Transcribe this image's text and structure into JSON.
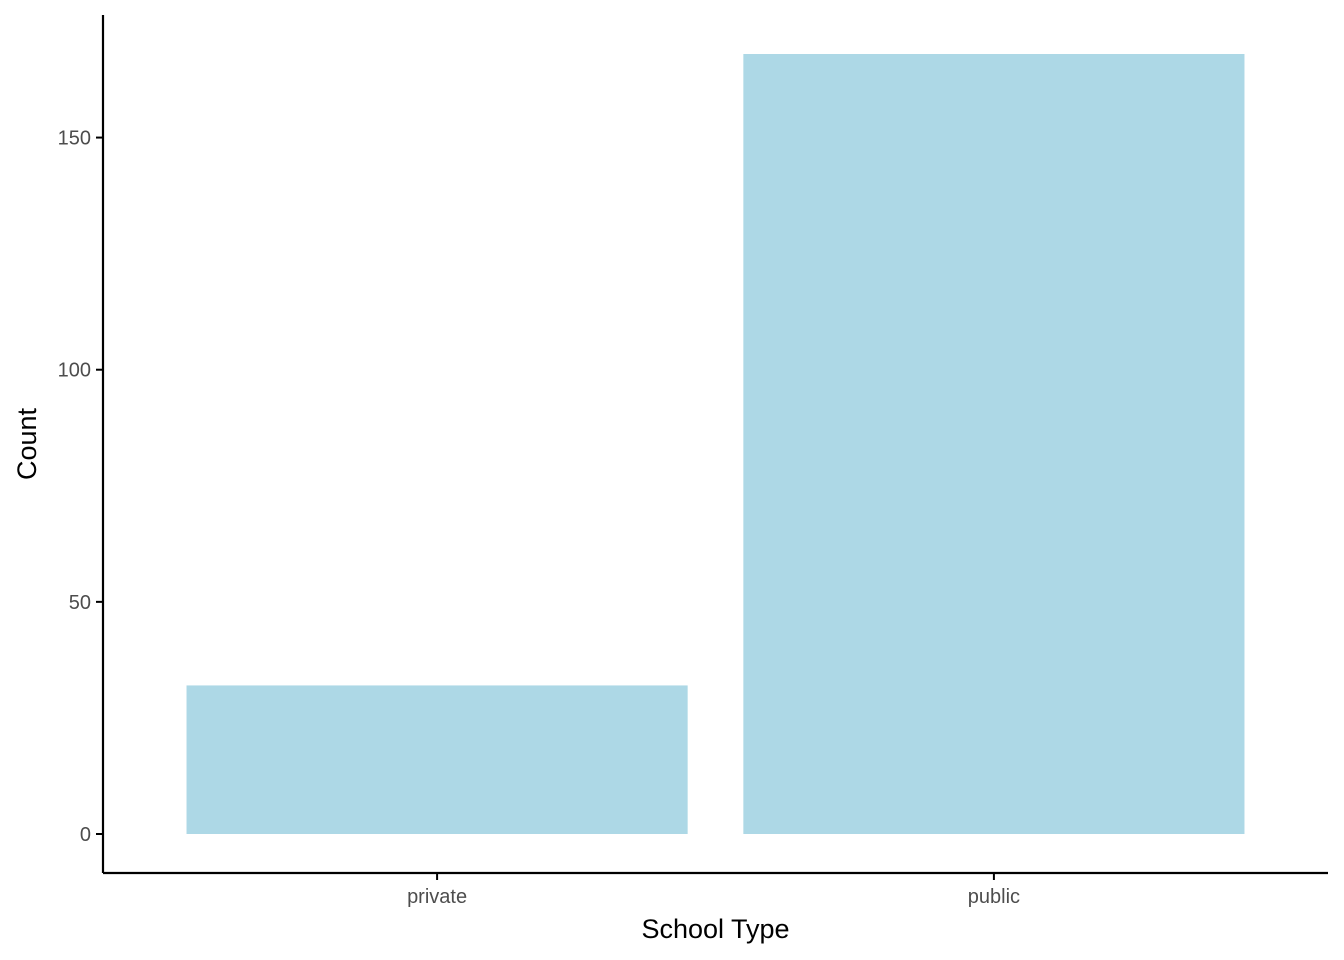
{
  "chart_data": {
    "type": "bar",
    "categories": [
      "private",
      "public"
    ],
    "values": [
      32,
      168
    ],
    "xlabel": "School Type",
    "ylabel": "Count",
    "yticks": [
      0,
      50,
      100,
      150
    ],
    "ylim": [
      -8.4,
      176.4
    ],
    "grid": false,
    "bar_color": "#add8e6",
    "axis_color": "#000000",
    "tick_label_color": "#4d4d4d"
  }
}
